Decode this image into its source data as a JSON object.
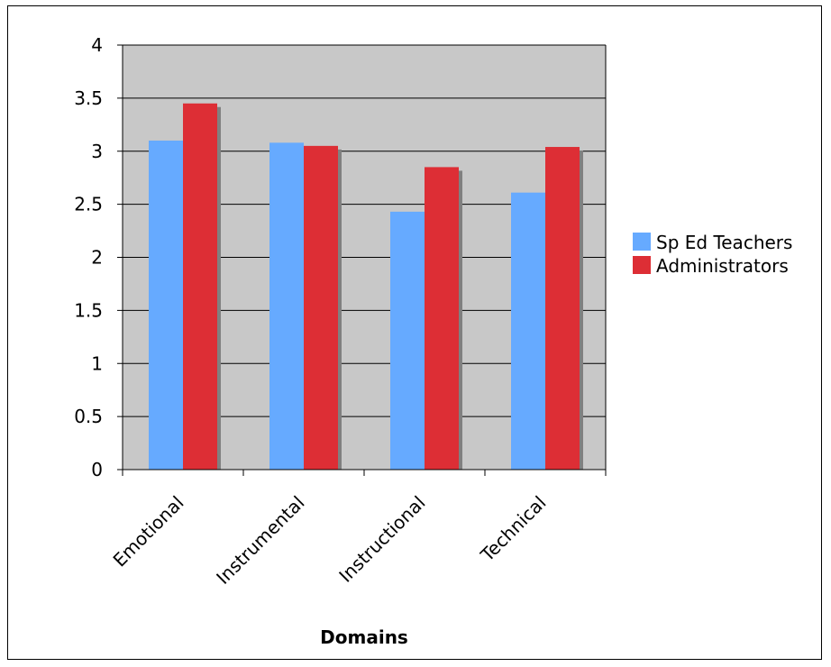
{
  "chart_data": {
    "type": "bar",
    "title": "",
    "xlabel": "Domains",
    "ylabel": "",
    "categories": [
      "Emotional",
      "Instrumental",
      "Instructional",
      "Technical"
    ],
    "series": [
      {
        "name": "Sp Ed Teachers",
        "color": "#66aaff",
        "values": [
          3.1,
          3.08,
          2.43,
          2.61
        ]
      },
      {
        "name": "Administrators",
        "color": "#dd2e35",
        "values": [
          3.45,
          3.05,
          2.85,
          3.04
        ]
      }
    ],
    "ylim": [
      0,
      4
    ],
    "yticks": [
      "0",
      "0.5",
      "1",
      "1.5",
      "2",
      "2.5",
      "3",
      "3.5",
      "4"
    ],
    "grid": true,
    "plot_background": "#c8c8c8",
    "legend_position": "right"
  }
}
